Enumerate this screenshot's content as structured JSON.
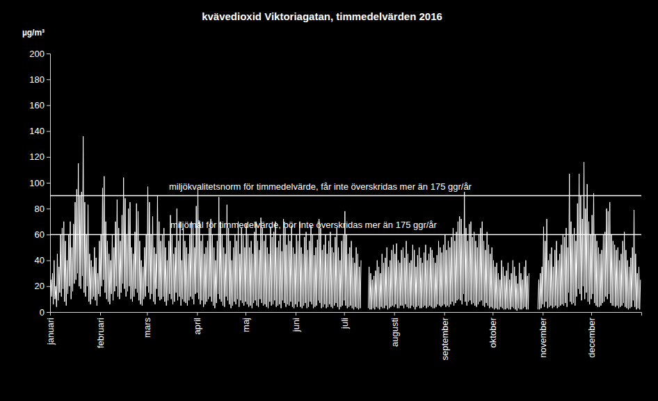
{
  "chart_data": {
    "type": "line",
    "title": "kvävedioxid Viktoriagatan, timmedelvärden 2016",
    "y_label": "µg/m³",
    "color": "#ffffff",
    "grid": false,
    "xlim": [
      0,
      366
    ],
    "xticks": [
      {
        "value": 0,
        "label": "januari"
      },
      {
        "value": 31,
        "label": "februari"
      },
      {
        "value": 60,
        "label": "mars"
      },
      {
        "value": 91,
        "label": "april"
      },
      {
        "value": 121,
        "label": "maj"
      },
      {
        "value": 152,
        "label": "juni"
      },
      {
        "value": 182,
        "label": "juli"
      },
      {
        "value": 213,
        "label": "augusti"
      },
      {
        "value": 244,
        "label": "september"
      },
      {
        "value": 274,
        "label": "oktober"
      },
      {
        "value": 305,
        "label": "november"
      },
      {
        "value": 335,
        "label": "december"
      }
    ],
    "ylim": [
      0,
      200
    ],
    "yticks": [
      0,
      20,
      40,
      60,
      80,
      100,
      120,
      140,
      160,
      180,
      200
    ],
    "annotations": [
      {
        "value": 90,
        "label": "miljökvalitetsnorm för timmedelvärde, får inte överskridas mer än 175 ggr/år"
      },
      {
        "value": 60,
        "label": "miljömål för timmedelvärde, bör inte överskridas mer än 175 ggr/år"
      }
    ],
    "x": [
      0,
      0.5,
      1,
      1.5,
      2,
      2.5,
      3,
      3.5,
      4,
      4.5,
      5,
      5.5,
      6,
      6.5,
      7,
      7.5,
      8,
      8.5,
      9,
      9.5,
      10,
      10.5,
      11,
      11.5,
      12,
      12.5,
      13,
      13.5,
      14,
      14.5,
      15,
      15.5,
      16,
      16.5,
      17,
      17.5,
      18,
      18.5,
      19,
      19.5,
      20,
      20.5,
      21,
      21.5,
      22,
      22.5,
      23,
      23.5,
      24,
      24.5,
      25,
      25.5,
      26,
      26.5,
      27,
      27.5,
      28,
      28.5,
      29,
      29.5,
      30,
      30.5,
      31,
      31.5,
      32,
      32.5,
      33,
      33.5,
      34,
      34.5,
      35,
      35.5,
      36,
      36.5,
      37,
      37.5,
      38,
      38.5,
      39,
      39.5,
      40,
      40.5,
      41,
      41.5,
      42,
      42.5,
      43,
      43.5,
      44,
      44.5,
      45,
      45.5,
      46,
      46.5,
      47,
      47.5,
      48,
      48.5,
      49,
      49.5,
      50,
      50.5,
      51,
      51.5,
      52,
      52.5,
      53,
      53.5,
      54,
      54.5,
      55,
      55.5,
      56,
      56.5,
      57,
      57.5,
      58,
      58.5,
      59,
      59.5,
      60,
      60.5,
      61,
      61.5,
      62,
      62.5,
      63,
      63.5,
      64,
      64.5,
      65,
      65.5,
      66,
      66.5,
      67,
      67.5,
      68,
      68.5,
      69,
      69.5,
      70,
      70.5,
      71,
      71.5,
      72,
      72.5,
      73,
      73.5,
      74,
      74.5,
      75,
      75.5,
      76,
      76.5,
      77,
      77.5,
      78,
      78.5,
      79,
      79.5,
      80,
      80.5,
      81,
      81.5,
      82,
      82.5,
      83,
      83.5,
      84,
      84.5,
      85,
      85.5,
      86,
      86.5,
      87,
      87.5,
      88,
      88.5,
      89,
      89.5,
      90,
      90.5,
      91,
      91.5,
      92,
      92.5,
      93,
      93.5,
      94,
      94.5,
      95,
      95.5,
      96,
      96.5,
      97,
      97.5,
      98,
      98.5,
      99,
      99.5,
      100,
      100.5,
      101,
      101.5,
      102,
      102.5,
      103,
      103.5,
      104,
      104.5,
      105,
      105.5,
      106,
      106.5,
      107,
      107.5,
      108,
      108.5,
      109,
      109.5,
      110,
      110.5,
      111,
      111.5,
      112,
      112.5,
      113,
      113.5,
      114,
      114.5,
      115,
      115.5,
      116,
      116.5,
      117,
      117.5,
      118,
      118.5,
      119,
      119.5,
      120,
      120.5,
      121,
      121.5,
      122,
      122.5,
      123,
      123.5,
      124,
      124.5,
      125,
      125.5,
      126,
      126.5,
      127,
      127.5,
      128,
      128.5,
      129,
      129.5,
      130,
      130.5,
      131,
      131.5,
      132,
      132.5,
      133,
      133.5,
      134,
      134.5,
      135,
      135.5,
      136,
      136.5,
      137,
      137.5,
      138,
      138.5,
      139,
      139.5,
      140,
      140.5,
      141,
      141.5,
      142,
      142.5,
      143,
      143.5,
      144,
      144.5,
      145,
      145.5,
      146,
      146.5,
      147,
      147.5,
      148,
      148.5,
      149,
      149.5,
      150,
      150.5,
      151,
      151.5,
      152,
      152.5,
      153,
      153.5,
      154,
      154.5,
      155,
      155.5,
      156,
      156.5,
      157,
      157.5,
      158,
      158.5,
      159,
      159.5,
      160,
      160.5,
      161,
      161.5,
      162,
      162.5,
      163,
      163.5,
      164,
      164.5,
      165,
      165.5,
      166,
      166.5,
      167,
      167.5,
      168,
      168.5,
      169,
      169.5,
      170,
      170.5,
      171,
      171.5,
      172,
      172.5,
      173,
      173.5,
      174,
      174.5,
      175,
      175.5,
      176,
      176.5,
      177,
      177.5,
      178,
      178.5,
      179,
      179.5,
      180,
      180.5,
      181,
      181.5,
      182,
      182.5,
      183,
      183.5,
      184,
      184.5,
      185,
      185.5,
      186,
      186.5,
      187,
      187.5,
      188,
      188.5,
      189,
      189.5,
      190,
      190.5,
      191,
      191.5,
      192,
      192.5,
      193,
      193.5,
      194,
      194.5,
      195,
      195.5,
      196,
      196.5,
      197,
      197.5,
      198,
      198.5,
      199,
      199.5,
      200,
      200.5,
      201,
      201.5,
      202,
      202.5,
      203,
      203.5,
      204,
      204.5,
      205,
      205.5,
      206,
      206.5,
      207,
      207.5,
      208,
      208.5,
      209,
      209.5,
      210,
      210.5,
      211,
      211.5,
      212,
      212.5,
      213,
      213.5,
      214,
      214.5,
      215,
      215.5,
      216,
      216.5,
      217,
      217.5,
      218,
      218.5,
      219,
      219.5,
      220,
      220.5,
      221,
      221.5,
      222,
      222.5,
      223,
      223.5,
      224,
      224.5,
      225,
      225.5,
      226,
      226.5,
      227,
      227.5,
      228,
      228.5,
      229,
      229.5,
      230,
      230.5,
      231,
      231.5,
      232,
      232.5,
      233,
      233.5,
      234,
      234.5,
      235,
      235.5,
      236,
      236.5,
      237,
      237.5,
      238,
      238.5,
      239,
      239.5,
      240,
      240.5,
      241,
      241.5,
      242,
      242.5,
      243,
      243.5,
      244,
      244.5,
      245,
      245.5,
      246,
      246.5,
      247,
      247.5,
      248,
      248.5,
      249,
      249.5,
      250,
      250.5,
      251,
      251.5,
      252,
      252.5,
      253,
      253.5,
      254,
      254.5,
      255,
      255.5,
      256,
      256.5,
      257,
      257.5,
      258,
      258.5,
      259,
      259.5,
      260,
      260.5,
      261,
      261.5,
      262,
      262.5,
      263,
      263.5,
      264,
      264.5,
      265,
      265.5,
      266,
      266.5,
      267,
      267.5,
      268,
      268.5,
      269,
      269.5,
      270,
      270.5,
      271,
      271.5,
      272,
      272.5,
      273,
      273.5,
      274,
      274.5,
      275,
      275.5,
      276,
      276.5,
      277,
      277.5,
      278,
      278.5,
      279,
      279.5,
      280,
      280.5,
      281,
      281.5,
      282,
      282.5,
      283,
      283.5,
      284,
      284.5,
      285,
      285.5,
      286,
      286.5,
      287,
      287.5,
      288,
      288.5,
      289,
      289.5,
      290,
      290.5,
      291,
      291.5,
      292,
      292.5,
      293,
      293.5,
      294,
      294.5,
      295,
      295.5,
      296,
      296.5,
      297,
      297.5,
      298,
      298.5,
      299,
      299.5,
      300,
      300.5,
      301,
      301.5,
      302,
      302.5,
      303,
      303.5,
      304,
      304.5,
      305,
      305.5,
      306,
      306.5,
      307,
      307.5,
      308,
      308.5,
      309,
      309.5,
      310,
      310.5,
      311,
      311.5,
      312,
      312.5,
      313,
      313.5,
      314,
      314.5,
      315,
      315.5,
      316,
      316.5,
      317,
      317.5,
      318,
      318.5,
      319,
      319.5,
      320,
      320.5,
      321,
      321.5,
      322,
      322.5,
      323,
      323.5,
      324,
      324.5,
      325,
      325.5,
      326,
      326.5,
      327,
      327.5,
      328,
      328.5,
      329,
      329.5,
      330,
      330.5,
      331,
      331.5,
      332,
      332.5,
      333,
      333.5,
      334,
      334.5,
      335,
      335.5,
      336,
      336.5,
      337,
      337.5,
      338,
      338.5,
      339,
      339.5,
      340,
      340.5,
      341,
      341.5,
      342,
      342.5,
      343,
      343.5,
      344,
      344.5,
      345,
      345.5,
      346,
      346.5,
      347,
      347.5,
      348,
      348.5,
      349,
      349.5,
      350,
      350.5,
      351,
      351.5,
      352,
      352.5,
      353,
      353.5,
      354,
      354.5,
      355,
      355.5,
      356,
      356.5,
      357,
      357.5,
      358,
      358.5,
      359,
      359.5,
      360,
      360.5,
      361,
      361.5,
      362,
      362.5,
      363,
      363.5,
      364,
      364.5,
      365,
      365.5
    ],
    "values": [
      8,
      25,
      12,
      30,
      6,
      40,
      10,
      20,
      4,
      45,
      9,
      35,
      15,
      60,
      12,
      65,
      18,
      70,
      8,
      55,
      5,
      40,
      14,
      60,
      20,
      70,
      10,
      50,
      16,
      68,
      22,
      85,
      25,
      95,
      30,
      115,
      20,
      90,
      18,
      93,
      28,
      136,
      15,
      85,
      12,
      60,
      20,
      83,
      8,
      45,
      6,
      40,
      10,
      35,
      12,
      50,
      9,
      42,
      5,
      30,
      14,
      55,
      12,
      60,
      20,
      96,
      25,
      105,
      15,
      70,
      10,
      55,
      8,
      45,
      6,
      40,
      14,
      60,
      9,
      50,
      16,
      70,
      20,
      87,
      12,
      65,
      10,
      55,
      15,
      75,
      22,
      104,
      18,
      88,
      12,
      60,
      16,
      80,
      20,
      85,
      10,
      50,
      8,
      45,
      12,
      62,
      18,
      84,
      15,
      78,
      9,
      55,
      6,
      40,
      5,
      35,
      10,
      50,
      12,
      60,
      20,
      97,
      15,
      85,
      10,
      60,
      14,
      74,
      8,
      50,
      6,
      45,
      18,
      90,
      12,
      70,
      9,
      55,
      10,
      60,
      12,
      65,
      8,
      50,
      5,
      40,
      9,
      55,
      14,
      75,
      10,
      60,
      6,
      45,
      8,
      50,
      15,
      80,
      9,
      55,
      12,
      70,
      5,
      40,
      10,
      65,
      8,
      55,
      7,
      50,
      5,
      45,
      9,
      60,
      12,
      70,
      10,
      65,
      6,
      50,
      14,
      82,
      15,
      95,
      10,
      70,
      6,
      55,
      9,
      60,
      4,
      45,
      6,
      50,
      8,
      55,
      10,
      65,
      12,
      72,
      8,
      60,
      5,
      50,
      3,
      40,
      7,
      55,
      14,
      89,
      10,
      70,
      8,
      60,
      5,
      50,
      4,
      45,
      12,
      83,
      9,
      65,
      6,
      55,
      3,
      40,
      5,
      50,
      8,
      60,
      6,
      55,
      10,
      70,
      4,
      45,
      9,
      65,
      7,
      60,
      5,
      50,
      8,
      68,
      6,
      60,
      4,
      50,
      5,
      55,
      3,
      45,
      7,
      62,
      9,
      70,
      5,
      55,
      4,
      48,
      10,
      73,
      7,
      65,
      5,
      55,
      6,
      60,
      4,
      50,
      3,
      45,
      8,
      66,
      5,
      58,
      6,
      62,
      9,
      70,
      4,
      50,
      5,
      55,
      6,
      60,
      3,
      47,
      9,
      72,
      7,
      65,
      4,
      52,
      6,
      60,
      5,
      55,
      8,
      67,
      4,
      50,
      3,
      45,
      6,
      60,
      4,
      55,
      8,
      70,
      4,
      50,
      3,
      45,
      5,
      58,
      7,
      62,
      3,
      48,
      4,
      55,
      8,
      67,
      6,
      60,
      3,
      44,
      4,
      50,
      5,
      56,
      9,
      72,
      7,
      65,
      3,
      48,
      4,
      52,
      6,
      60,
      3,
      45,
      4,
      55,
      6,
      62,
      4,
      50,
      3,
      46,
      5,
      58,
      7,
      65,
      4,
      50,
      2,
      40,
      4,
      55,
      5,
      60,
      9,
      78,
      5,
      60,
      3,
      45,
      4,
      50,
      5,
      55,
      3,
      42,
      2,
      38,
      4,
      50,
      3,
      45,
      2,
      35,
      3,
      40,
      null,
      null,
      null,
      null,
      null,
      null,
      null,
      null,
      3,
      35,
      2,
      30,
      2,
      25,
      3,
      28,
      2,
      32,
      4,
      40,
      3,
      35,
      2,
      30,
      4,
      45,
      3,
      38,
      3,
      42,
      5,
      50,
      2,
      35,
      3,
      40,
      4,
      48,
      5,
      52,
      4,
      45,
      6,
      53,
      3,
      40,
      3,
      38,
      5,
      48,
      5,
      50,
      3,
      42,
      6,
      55,
      4,
      45,
      3,
      38,
      3,
      40,
      5,
      52,
      4,
      48,
      2,
      35,
      4,
      44,
      5,
      50,
      3,
      42,
      3,
      38,
      4,
      46,
      5,
      52,
      3,
      40,
      4,
      45,
      5,
      50,
      4,
      48,
      3,
      42,
      3,
      38,
      4,
      44,
      6,
      55,
      5,
      50,
      4,
      46,
      5,
      52,
      6,
      60,
      4,
      48,
      5,
      55,
      4,
      50,
      6,
      58,
      8,
      65,
      5,
      55,
      7,
      62,
      9,
      70,
      10,
      74,
      9,
      72,
      6,
      60,
      14,
      93,
      8,
      65,
      5,
      55,
      8,
      68,
      9,
      70,
      6,
      58,
      7,
      62,
      5,
      55,
      4,
      50,
      6,
      60,
      8,
      65,
      9,
      70,
      5,
      55,
      4,
      48,
      7,
      62,
      5,
      52,
      3,
      45,
      4,
      50,
      3,
      40,
      2,
      35,
      3,
      38,
      2,
      30,
      2,
      25,
      4,
      40,
      3,
      35,
      2,
      28,
      2,
      32,
      3,
      38,
      2,
      25,
      2,
      30,
      4,
      40,
      3,
      35,
      2,
      28,
      1,
      22,
      3,
      38,
      2,
      30,
      2,
      25,
      3,
      35,
      4,
      40,
      2,
      28,
      2,
      30,
      null,
      null,
      null,
      null,
      null,
      null,
      null,
      null,
      null,
      null,
      2,
      25,
      2,
      30,
      3,
      35,
      6,
      66,
      4,
      55,
      8,
      72,
      3,
      40,
      4,
      45,
      5,
      50,
      3,
      35,
      4,
      48,
      5,
      55,
      3,
      40,
      4,
      45,
      5,
      52,
      6,
      60,
      5,
      58,
      7,
      65,
      4,
      50,
      15,
      107,
      8,
      70,
      6,
      60,
      7,
      65,
      5,
      55,
      12,
      84,
      18,
      107,
      14,
      90,
      9,
      72,
      20,
      116,
      10,
      80,
      15,
      99,
      8,
      70,
      6,
      60,
      10,
      75,
      14,
      92,
      7,
      60,
      5,
      55,
      4,
      50,
      4,
      45,
      5,
      48,
      7,
      60,
      8,
      62,
      12,
      80,
      10,
      78,
      14,
      85,
      7,
      60,
      5,
      55,
      5,
      52,
      4,
      48,
      5,
      50,
      3,
      40,
      4,
      45,
      5,
      55,
      7,
      62,
      4,
      48,
      3,
      40,
      2,
      35,
      3,
      42,
      4,
      50,
      9,
      79,
      4,
      45,
      2,
      30,
      3,
      35,
      2,
      25
    ]
  }
}
